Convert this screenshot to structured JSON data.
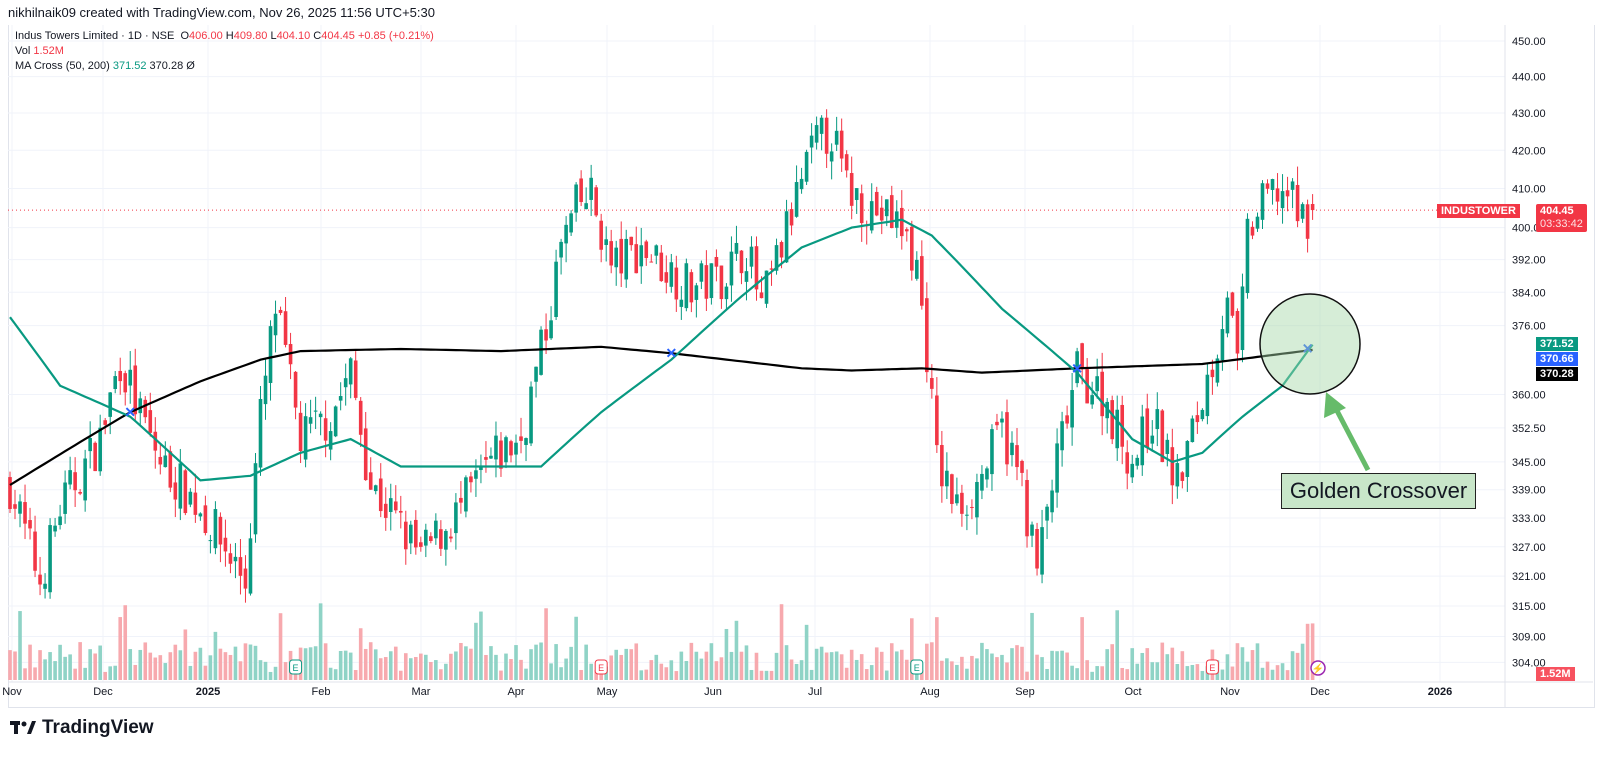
{
  "credit": "nikhilnaik09 created with TradingView.com, Nov 26, 2025 11:56 UTC+5:30",
  "legend": {
    "symbol": "Indus Towers Limited · 1D · NSE",
    "o_label": "O",
    "o": "406.00",
    "h_label": "H",
    "h": "409.80",
    "l_label": "L",
    "l": "404.10",
    "c_label": "C",
    "c": "404.45",
    "change": "+0.85 (+0.21%)",
    "vol_label": "Vol",
    "vol": "1.52M",
    "ma_label": "MA Cross (50, 200)",
    "ma50": "371.52",
    "ma200": "370.28",
    "ma_icon": "Ø"
  },
  "tags": {
    "ticker": "INDUSTOWER",
    "price": "404.45",
    "countdown": "03:33:42",
    "ma50": "371.52",
    "cross": "370.66",
    "ma200": "370.28",
    "vol": "1.52M"
  },
  "annotation": "Golden Crossover",
  "logo": "TradingView",
  "colors": {
    "up": "#089981",
    "down": "#f23645",
    "ma50": "#089981",
    "ma200": "#000000"
  },
  "chart_data": {
    "type": "candlestick",
    "price_scale": "log",
    "y_ticks": [
      "450.00",
      "440.00",
      "430.00",
      "420.00",
      "410.00",
      "400.00",
      "392.00",
      "384.00",
      "376.00",
      "360.00",
      "352.50",
      "345.00",
      "339.00",
      "333.00",
      "327.00",
      "321.00",
      "315.00",
      "309.00",
      "304.00"
    ],
    "x_ticks": [
      "Nov",
      "Dec",
      "2025",
      "Feb",
      "Mar",
      "Apr",
      "May",
      "Jun",
      "Jul",
      "Aug",
      "Sep",
      "Oct",
      "Nov",
      "Dec",
      "2026"
    ],
    "close_path": [
      [
        0,
        340
      ],
      [
        6,
        320
      ],
      [
        10,
        335
      ],
      [
        18,
        350
      ],
      [
        22,
        368
      ],
      [
        26,
        355
      ],
      [
        30,
        345
      ],
      [
        38,
        335
      ],
      [
        47,
        320
      ],
      [
        50,
        355
      ],
      [
        53,
        380
      ],
      [
        58,
        350
      ],
      [
        64,
        355
      ],
      [
        68,
        365
      ],
      [
        72,
        340
      ],
      [
        82,
        325
      ],
      [
        90,
        335
      ],
      [
        96,
        345
      ],
      [
        102,
        350
      ],
      [
        107,
        375
      ],
      [
        110,
        395
      ],
      [
        113,
        405
      ],
      [
        116,
        408
      ],
      [
        120,
        390
      ],
      [
        126,
        395
      ],
      [
        131,
        390
      ],
      [
        136,
        385
      ],
      [
        142,
        388
      ],
      [
        147,
        395
      ],
      [
        150,
        380
      ],
      [
        154,
        395
      ],
      [
        158,
        412
      ],
      [
        161,
        422
      ],
      [
        164,
        425
      ],
      [
        167,
        410
      ],
      [
        172,
        405
      ],
      [
        178,
        400
      ],
      [
        181,
        390
      ],
      [
        183,
        370
      ],
      [
        185,
        345
      ],
      [
        189,
        335
      ],
      [
        193,
        340
      ],
      [
        198,
        352
      ],
      [
        202,
        340
      ],
      [
        205,
        322
      ],
      [
        208,
        340
      ],
      [
        213,
        365
      ],
      [
        218,
        360
      ],
      [
        224,
        345
      ],
      [
        228,
        355
      ],
      [
        233,
        340
      ],
      [
        237,
        355
      ],
      [
        241,
        372
      ],
      [
        243,
        385
      ],
      [
        245,
        365
      ],
      [
        247,
        398
      ],
      [
        251,
        408
      ],
      [
        254,
        410
      ],
      [
        258,
        402
      ],
      [
        260,
        404.45
      ]
    ],
    "ma50": [
      [
        0,
        378
      ],
      [
        10,
        362
      ],
      [
        24,
        355
      ],
      [
        38,
        341
      ],
      [
        48,
        342
      ],
      [
        58,
        347
      ],
      [
        68,
        350
      ],
      [
        78,
        344
      ],
      [
        88,
        344
      ],
      [
        98,
        344
      ],
      [
        106,
        344
      ],
      [
        118,
        356
      ],
      [
        132,
        368
      ],
      [
        146,
        383
      ],
      [
        158,
        395
      ],
      [
        168,
        400
      ],
      [
        178,
        402
      ],
      [
        184,
        398
      ],
      [
        198,
        380
      ],
      [
        213,
        365
      ],
      [
        224,
        350
      ],
      [
        232,
        345
      ],
      [
        238,
        347
      ],
      [
        246,
        355
      ],
      [
        254,
        362
      ],
      [
        260,
        371.52
      ]
    ],
    "ma200": [
      [
        0,
        340
      ],
      [
        24,
        356
      ],
      [
        38,
        363
      ],
      [
        50,
        368
      ],
      [
        58,
        370
      ],
      [
        78,
        370.5
      ],
      [
        98,
        370
      ],
      [
        118,
        371
      ],
      [
        132,
        369.5
      ],
      [
        158,
        366
      ],
      [
        168,
        365.5
      ],
      [
        182,
        366
      ],
      [
        194,
        365
      ],
      [
        213,
        366
      ],
      [
        238,
        367
      ],
      [
        260,
        370.28
      ]
    ],
    "crossovers": [
      {
        "bar": 24,
        "price": 356
      },
      {
        "bar": 132,
        "price": 369.5
      },
      {
        "bar": 213,
        "price": 366
      },
      {
        "bar": 259,
        "price": 370.66
      }
    ],
    "earnings_bars": [
      57,
      118,
      181,
      240
    ],
    "last_volume": "1.52M"
  }
}
